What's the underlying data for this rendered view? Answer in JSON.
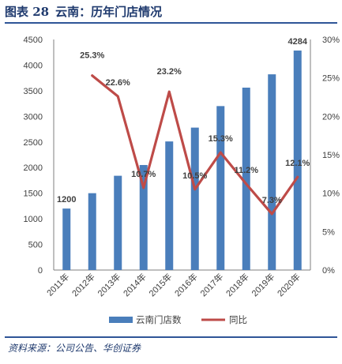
{
  "figure": {
    "number": "图表 28",
    "title": "云南：历年门店情况",
    "source": "资料来源：公司公告、华创证券"
  },
  "colors": {
    "bar": "#4a7ebb",
    "line": "#be4b48",
    "title": "#1f3a6e",
    "rule": "#2f5597"
  },
  "chart_data": {
    "type": "bar",
    "categories": [
      "2011年",
      "2012年",
      "2013年",
      "2014年",
      "2015年",
      "2016年",
      "2017年",
      "2018年",
      "2019年",
      "2020年"
    ],
    "series": [
      {
        "name": "云南门店数",
        "type": "bar",
        "axis": "left",
        "values": [
          1200,
          1500,
          1840,
          2050,
          2510,
          2780,
          3200,
          3560,
          3820,
          4284
        ]
      },
      {
        "name": "同比",
        "type": "line",
        "axis": "right",
        "values": [
          null,
          25.3,
          22.6,
          10.7,
          23.2,
          10.5,
          15.3,
          11.2,
          7.3,
          12.1
        ]
      }
    ],
    "bar_labels": [
      {
        "index": 0,
        "text": "1200"
      },
      {
        "index": 9,
        "text": "4284"
      }
    ],
    "line_labels": [
      "",
      "25.3%",
      "22.6%",
      "10.7%",
      "23.2%",
      "10.5%",
      "15.3%",
      "11.2%",
      "7.3%",
      "12.1%"
    ],
    "y_left": {
      "min": 0,
      "max": 4500,
      "ticks": [
        "0",
        "500",
        "1000",
        "1500",
        "2000",
        "2500",
        "3000",
        "3500",
        "4000",
        "4500"
      ]
    },
    "y_right": {
      "min": 0,
      "max": 30,
      "ticks": [
        "0%",
        "5%",
        "10%",
        "15%",
        "20%",
        "25%",
        "30%"
      ]
    },
    "grid": false,
    "legend_position": "bottom"
  }
}
